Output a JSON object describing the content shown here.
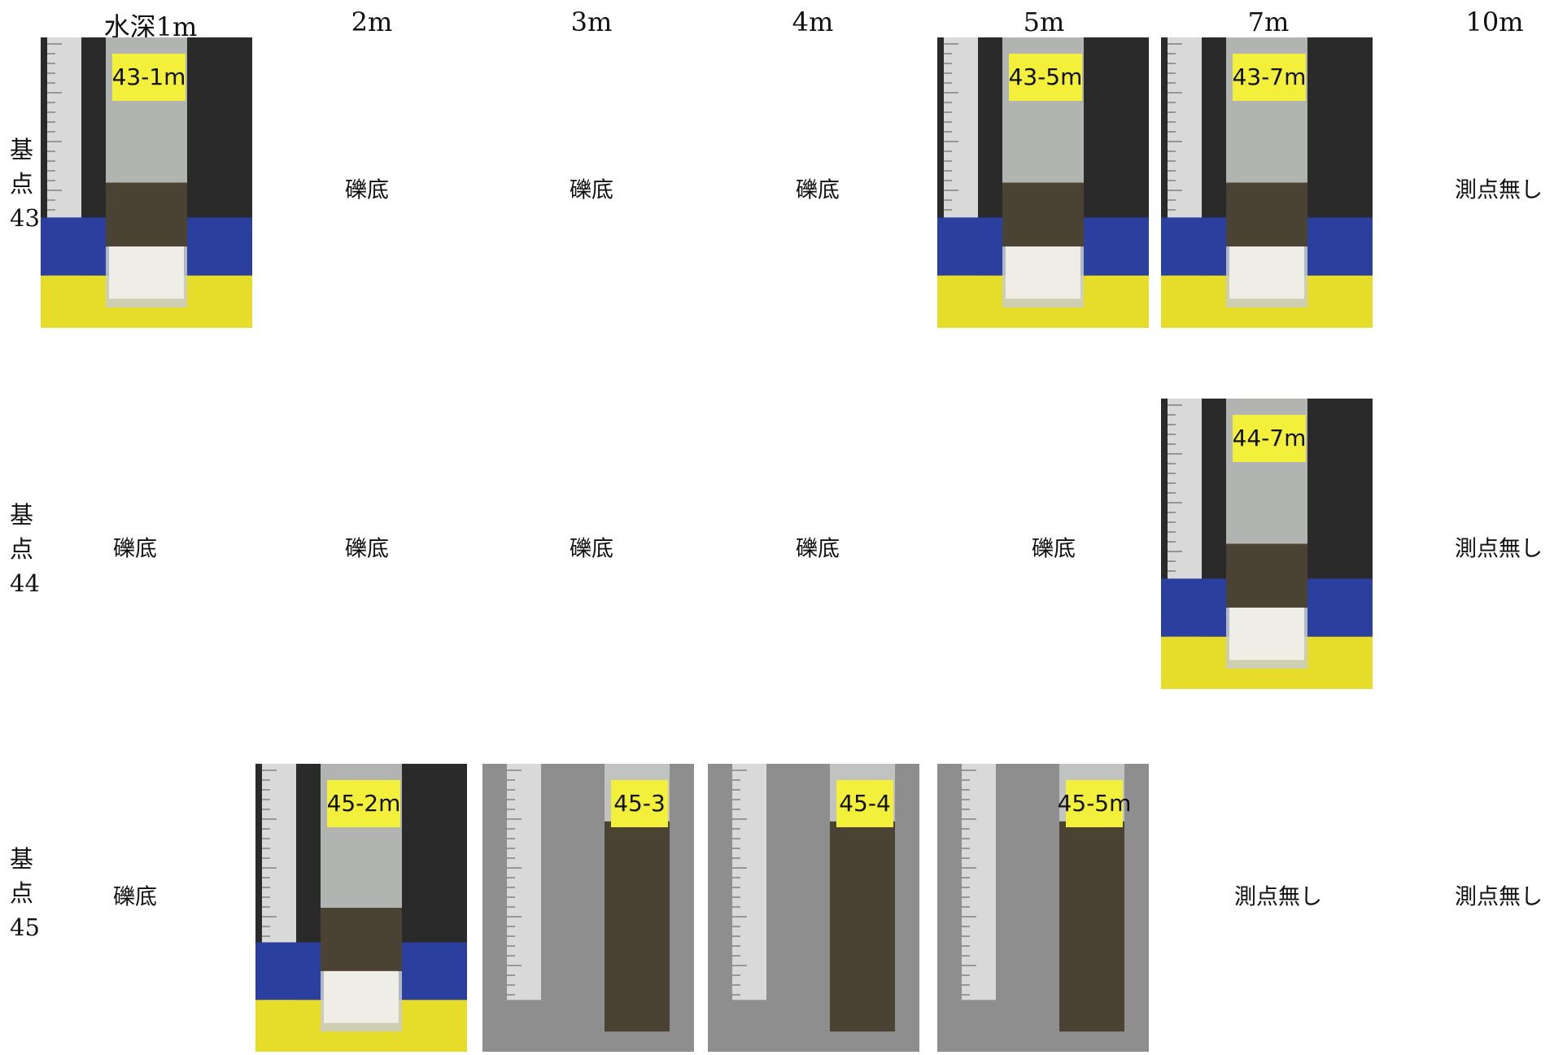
{
  "header": {
    "columns": [
      "水深1m",
      "2m",
      "3m",
      "4m",
      "5m",
      "7m",
      "10m"
    ]
  },
  "rows": [
    {
      "label": "基点43",
      "cells": [
        {
          "photo": "43-1m"
        },
        {
          "text": "礫底"
        },
        {
          "text": "礫底"
        },
        {
          "text": "礫底"
        },
        {
          "photo": "43-5m"
        },
        {
          "photo": "43-7m"
        },
        {
          "text": "測点無し"
        }
      ]
    },
    {
      "label": "基点44",
      "cells": [
        {
          "text": "礫底"
        },
        {
          "text": "礫底"
        },
        {
          "text": "礫底"
        },
        {
          "text": "礫底"
        },
        {
          "text": "礫底"
        },
        {
          "photo": "44-7m"
        },
        {
          "text": "測点無し"
        }
      ]
    },
    {
      "label": "基点45",
      "cells": [
        {
          "text": "礫底"
        },
        {
          "photo": "45-2m"
        },
        {
          "photo": "45-3"
        },
        {
          "photo": "45-4"
        },
        {
          "photo": "45-5m"
        },
        {
          "text": "測点無し"
        },
        {
          "text": "測点無し"
        }
      ]
    }
  ]
}
